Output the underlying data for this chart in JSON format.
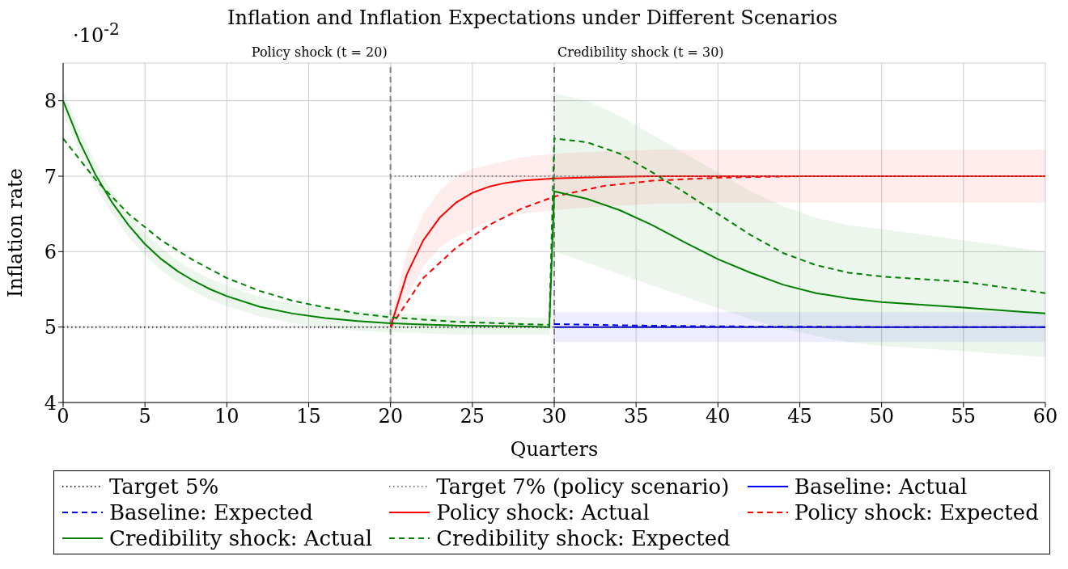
{
  "chart_data": {
    "type": "line",
    "title": "Inflation and Inflation Expectations under Different Scenarios",
    "xlabel": "Quarters",
    "ylabel": "Inflation rate",
    "annotations": [
      "·10$^{-2}$"
    ],
    "xlim": [
      0,
      60
    ],
    "xticks": [
      0,
      5,
      10,
      15,
      20,
      25,
      30,
      35,
      40,
      45,
      50,
      55,
      60
    ],
    "ylim": [
      4,
      8.5
    ],
    "yticks": [
      4,
      5,
      6,
      7,
      8
    ],
    "grid": true,
    "legend": "bottom",
    "marker": "none",
    "ref_lines": [
      {
        "axis": "x",
        "value": 20,
        "label": "Policy shock (t = 20)",
        "color": "#808080",
        "line_style": "dashed"
      },
      {
        "axis": "x",
        "value": 30,
        "label": "Credibility shock (t = 30)",
        "color": "#808080",
        "line_style": "dashed"
      }
    ],
    "series": [
      {
        "name": "Target 5%",
        "color": "#333333",
        "line_style": "dotted",
        "x": [
          0,
          60
        ],
        "values": [
          5,
          5
        ]
      },
      {
        "name": "Target 7% (policy scenario)",
        "color": "#808080",
        "line_style": "dotted",
        "x": [
          20,
          60
        ],
        "values": [
          7,
          7
        ]
      },
      {
        "name": "Baseline: Actual",
        "color": "#0000ff",
        "line_style": "solid",
        "x": [
          30,
          40,
          50,
          60
        ],
        "values": [
          5,
          5,
          5,
          5
        ],
        "lower": [
          4.8,
          4.8,
          4.8,
          4.8
        ],
        "upper": [
          5.2,
          5.2,
          5.2,
          5.2
        ]
      },
      {
        "name": "Baseline: Expected",
        "color": "#0000ff",
        "line_style": "dashed",
        "x": [
          30,
          35,
          40,
          50,
          60
        ],
        "values": [
          5.04,
          5.02,
          5.01,
          5,
          5
        ]
      },
      {
        "name": "Policy shock: Actual",
        "color": "#ff0000",
        "line_style": "solid",
        "x": [
          20,
          21,
          22,
          23,
          24,
          25,
          26,
          27,
          28,
          30,
          33,
          36,
          40,
          50,
          60
        ],
        "values": [
          5,
          5.7,
          6.15,
          6.45,
          6.65,
          6.78,
          6.86,
          6.91,
          6.94,
          6.97,
          6.99,
          7,
          7,
          7,
          7
        ],
        "lower": [
          4.9,
          5.4,
          5.8,
          6.05,
          6.2,
          6.3,
          6.4,
          6.45,
          6.5,
          6.55,
          6.6,
          6.63,
          6.65,
          6.65,
          6.65
        ],
        "upper": [
          5.1,
          6,
          6.5,
          6.8,
          7,
          7.1,
          7.15,
          7.2,
          7.25,
          7.3,
          7.33,
          7.35,
          7.35,
          7.35,
          7.35
        ]
      },
      {
        "name": "Policy shock: Expected",
        "color": "#ff0000",
        "line_style": "dashed",
        "x": [
          20,
          22,
          24,
          26,
          28,
          30,
          33,
          36,
          40,
          45,
          50,
          60
        ],
        "values": [
          5,
          5.65,
          6.05,
          6.35,
          6.57,
          6.73,
          6.87,
          6.94,
          6.98,
          7,
          7,
          7
        ]
      },
      {
        "name": "Credibility shock: Actual",
        "color": "#008000",
        "line_style": "solid",
        "x": [
          0,
          1,
          2,
          3,
          4,
          5,
          6,
          7,
          8,
          9,
          10,
          12,
          14,
          16,
          18,
          20,
          24,
          28,
          29.7,
          30,
          32,
          34,
          36,
          38,
          40,
          42,
          44,
          46,
          48,
          50,
          55,
          60
        ],
        "values": [
          8,
          7.46,
          7.01,
          6.65,
          6.35,
          6.1,
          5.9,
          5.74,
          5.61,
          5.5,
          5.41,
          5.27,
          5.18,
          5.12,
          5.08,
          5.05,
          5.02,
          5.01,
          5,
          6.8,
          6.7,
          6.55,
          6.35,
          6.12,
          5.9,
          5.72,
          5.56,
          5.45,
          5.38,
          5.33,
          5.26,
          5.18
        ],
        "lower": [
          7.85,
          7.3,
          6.85,
          6.5,
          6.2,
          5.95,
          5.75,
          5.6,
          5.47,
          5.36,
          5.28,
          5.14,
          5.05,
          4.99,
          4.95,
          4.93,
          4.9,
          4.9,
          4.9,
          6,
          5.85,
          5.7,
          5.55,
          5.4,
          5.25,
          5.1,
          4.98,
          4.88,
          4.8,
          4.75,
          4.68,
          4.6
        ],
        "upper": [
          8.15,
          7.62,
          7.17,
          6.8,
          6.5,
          6.25,
          6.05,
          5.88,
          5.75,
          5.64,
          5.55,
          5.4,
          5.31,
          5.25,
          5.21,
          5.18,
          5.15,
          5.13,
          5.12,
          8.1,
          8,
          7.8,
          7.55,
          7.3,
          7.05,
          6.8,
          6.6,
          6.45,
          6.35,
          6.3,
          6.15,
          6
        ]
      },
      {
        "name": "Credibility shock: Expected",
        "color": "#008000",
        "line_style": "dashed",
        "x": [
          0,
          2,
          4,
          6,
          8,
          10,
          12,
          14,
          16,
          18,
          20,
          24,
          28,
          29.7,
          30,
          32,
          34,
          36,
          38,
          40,
          42,
          44,
          46,
          48,
          50,
          55,
          60
        ],
        "values": [
          7.5,
          6.95,
          6.5,
          6.15,
          5.88,
          5.65,
          5.48,
          5.35,
          5.26,
          5.18,
          5.13,
          5.07,
          5.04,
          5.03,
          7.5,
          7.45,
          7.3,
          7.05,
          6.78,
          6.5,
          6.22,
          5.98,
          5.82,
          5.72,
          5.67,
          5.6,
          5.45
        ]
      }
    ]
  }
}
